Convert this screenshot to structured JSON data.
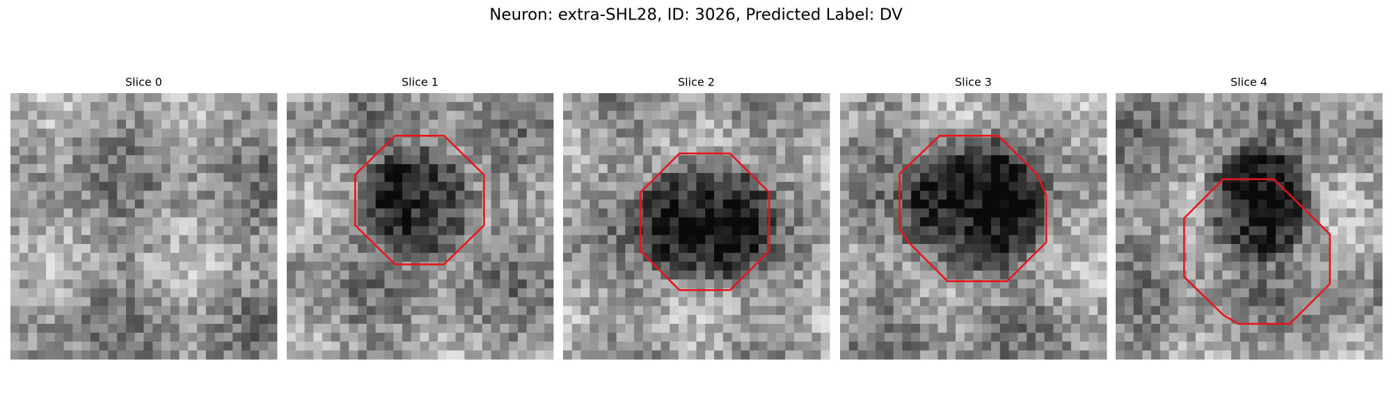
{
  "title": "Neuron: extra-SHL28, ID: 3026, Predicted Label: DV",
  "panels": [
    {
      "title": "Slice 0"
    },
    {
      "title": "Slice 1"
    },
    {
      "title": "Slice 2"
    },
    {
      "title": "Slice 3"
    },
    {
      "title": "Slice 4"
    }
  ]
}
